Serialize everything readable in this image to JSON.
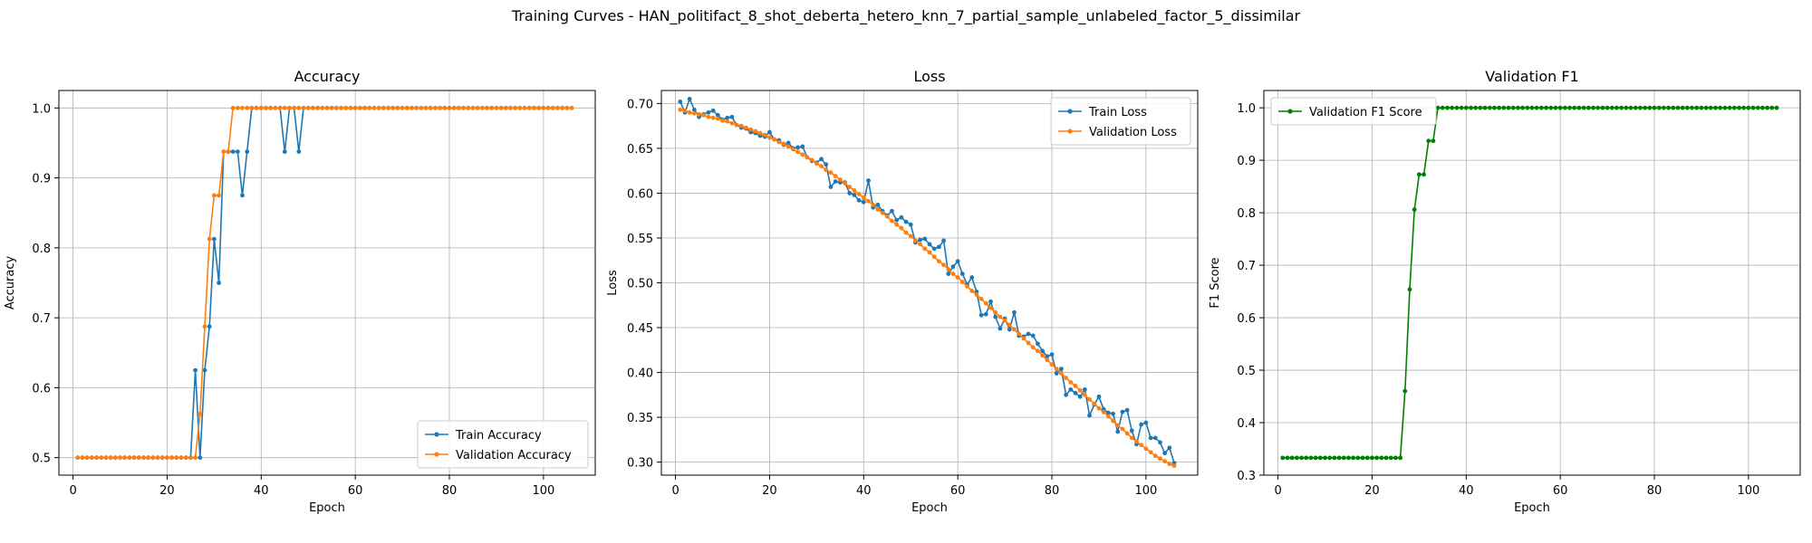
{
  "figure": {
    "suptitle": "Training Curves - HAN_politifact_8_shot_deberta_hetero_knn_7_partial_sample_unlabeled_factor_5_dissimilar"
  },
  "colors": {
    "train": "#1f77b4",
    "validation": "#ff7f0e",
    "f1": "#008000",
    "grid": "#b0b0b0"
  },
  "chart_data": [
    {
      "type": "line",
      "title": "Accuracy",
      "xlabel": "Epoch",
      "ylabel": "Accuracy",
      "xlim": [
        -3,
        111
      ],
      "ylim": [
        0.475,
        1.025
      ],
      "xticks": [
        0,
        20,
        40,
        60,
        80,
        100
      ],
      "yticks": [
        0.5,
        0.6,
        0.7,
        0.8,
        0.9,
        1.0
      ],
      "ytick_labels": [
        "0.5",
        "0.6",
        "0.7",
        "0.8",
        "0.9",
        "1.0"
      ],
      "grid": true,
      "legend": "lower-right",
      "x": [
        1,
        2,
        3,
        4,
        5,
        6,
        7,
        8,
        9,
        10,
        11,
        12,
        13,
        14,
        15,
        16,
        17,
        18,
        19,
        20,
        21,
        22,
        23,
        24,
        25,
        26,
        27,
        28,
        29,
        30,
        31,
        32,
        33,
        34,
        35,
        36,
        37,
        38,
        39,
        40,
        41,
        42,
        43,
        44,
        45,
        46,
        47,
        48,
        49,
        50,
        51,
        52,
        53,
        54,
        55,
        56,
        57,
        58,
        59,
        60,
        61,
        62,
        63,
        64,
        65,
        66,
        67,
        68,
        69,
        70,
        71,
        72,
        73,
        74,
        75,
        76,
        77,
        78,
        79,
        80,
        81,
        82,
        83,
        84,
        85,
        86,
        87,
        88,
        89,
        90,
        91,
        92,
        93,
        94,
        95,
        96,
        97,
        98,
        99,
        100,
        101,
        102,
        103,
        104,
        105,
        106
      ],
      "series": [
        {
          "name": "Train Accuracy",
          "color_key": "train",
          "values": [
            0.5,
            0.5,
            0.5,
            0.5,
            0.5,
            0.5,
            0.5,
            0.5,
            0.5,
            0.5,
            0.5,
            0.5,
            0.5,
            0.5,
            0.5,
            0.5,
            0.5,
            0.5,
            0.5,
            0.5,
            0.5,
            0.5,
            0.5,
            0.5,
            0.5,
            0.625,
            0.5,
            0.625,
            0.6875,
            0.8125,
            0.75,
            0.9375,
            0.9375,
            0.9375,
            0.9375,
            0.875,
            0.9375,
            1.0,
            1.0,
            1.0,
            1.0,
            1.0,
            1.0,
            1.0,
            0.9375,
            1.0,
            1.0,
            0.9375,
            1.0,
            1.0,
            1.0,
            1.0,
            1.0,
            1.0,
            1.0,
            1.0,
            1.0,
            1.0,
            1.0,
            1.0,
            1.0,
            1.0,
            1.0,
            1.0,
            1.0,
            1.0,
            1.0,
            1.0,
            1.0,
            1.0,
            1.0,
            1.0,
            1.0,
            1.0,
            1.0,
            1.0,
            1.0,
            1.0,
            1.0,
            1.0,
            1.0,
            1.0,
            1.0,
            1.0,
            1.0,
            1.0,
            1.0,
            1.0,
            1.0,
            1.0,
            1.0,
            1.0,
            1.0,
            1.0,
            1.0,
            1.0,
            1.0,
            1.0,
            1.0,
            1.0,
            1.0,
            1.0,
            1.0,
            1.0,
            1.0,
            1.0
          ]
        },
        {
          "name": "Validation Accuracy",
          "color_key": "validation",
          "values": [
            0.5,
            0.5,
            0.5,
            0.5,
            0.5,
            0.5,
            0.5,
            0.5,
            0.5,
            0.5,
            0.5,
            0.5,
            0.5,
            0.5,
            0.5,
            0.5,
            0.5,
            0.5,
            0.5,
            0.5,
            0.5,
            0.5,
            0.5,
            0.5,
            0.5,
            0.5,
            0.5625,
            0.6875,
            0.8125,
            0.875,
            0.875,
            0.9375,
            0.9375,
            1.0,
            1.0,
            1.0,
            1.0,
            1.0,
            1.0,
            1.0,
            1.0,
            1.0,
            1.0,
            1.0,
            1.0,
            1.0,
            1.0,
            1.0,
            1.0,
            1.0,
            1.0,
            1.0,
            1.0,
            1.0,
            1.0,
            1.0,
            1.0,
            1.0,
            1.0,
            1.0,
            1.0,
            1.0,
            1.0,
            1.0,
            1.0,
            1.0,
            1.0,
            1.0,
            1.0,
            1.0,
            1.0,
            1.0,
            1.0,
            1.0,
            1.0,
            1.0,
            1.0,
            1.0,
            1.0,
            1.0,
            1.0,
            1.0,
            1.0,
            1.0,
            1.0,
            1.0,
            1.0,
            1.0,
            1.0,
            1.0,
            1.0,
            1.0,
            1.0,
            1.0,
            1.0,
            1.0,
            1.0,
            1.0,
            1.0,
            1.0,
            1.0,
            1.0,
            1.0,
            1.0,
            1.0,
            1.0
          ]
        }
      ]
    },
    {
      "type": "line",
      "title": "Loss",
      "xlabel": "Epoch",
      "ylabel": "Loss",
      "xlim": [
        -3,
        111
      ],
      "ylim": [
        0.2855,
        0.7145
      ],
      "xticks": [
        0,
        20,
        40,
        60,
        80,
        100
      ],
      "yticks": [
        0.3,
        0.35,
        0.4,
        0.45,
        0.5,
        0.55,
        0.6,
        0.65,
        0.7
      ],
      "ytick_labels": [
        "0.30",
        "0.35",
        "0.40",
        "0.45",
        "0.50",
        "0.55",
        "0.60",
        "0.65",
        "0.70"
      ],
      "grid": true,
      "legend": "top-right",
      "x": [
        1,
        2,
        3,
        4,
        5,
        6,
        7,
        8,
        9,
        10,
        11,
        12,
        13,
        14,
        15,
        16,
        17,
        18,
        19,
        20,
        21,
        22,
        23,
        24,
        25,
        26,
        27,
        28,
        29,
        30,
        31,
        32,
        33,
        34,
        35,
        36,
        37,
        38,
        39,
        40,
        41,
        42,
        43,
        44,
        45,
        46,
        47,
        48,
        49,
        50,
        51,
        52,
        53,
        54,
        55,
        56,
        57,
        58,
        59,
        60,
        61,
        62,
        63,
        64,
        65,
        66,
        67,
        68,
        69,
        70,
        71,
        72,
        73,
        74,
        75,
        76,
        77,
        78,
        79,
        80,
        81,
        82,
        83,
        84,
        85,
        86,
        87,
        88,
        89,
        90,
        91,
        92,
        93,
        94,
        95,
        96,
        97,
        98,
        99,
        100,
        101,
        102,
        103,
        104,
        105,
        106
      ],
      "series": [
        {
          "name": "Train Loss",
          "color_key": "train",
          "values": [
            0.702,
            0.69,
            0.705,
            0.693,
            0.685,
            0.688,
            0.69,
            0.692,
            0.687,
            0.682,
            0.684,
            0.685,
            0.676,
            0.673,
            0.672,
            0.668,
            0.667,
            0.664,
            0.663,
            0.668,
            0.66,
            0.659,
            0.654,
            0.656,
            0.65,
            0.651,
            0.652,
            0.64,
            0.636,
            0.634,
            0.638,
            0.632,
            0.607,
            0.613,
            0.612,
            0.612,
            0.6,
            0.598,
            0.592,
            0.59,
            0.614,
            0.584,
            0.587,
            0.58,
            0.575,
            0.58,
            0.57,
            0.573,
            0.568,
            0.565,
            0.545,
            0.548,
            0.549,
            0.543,
            0.538,
            0.54,
            0.547,
            0.51,
            0.518,
            0.524,
            0.51,
            0.498,
            0.506,
            0.49,
            0.464,
            0.465,
            0.479,
            0.462,
            0.449,
            0.46,
            0.448,
            0.467,
            0.441,
            0.44,
            0.443,
            0.441,
            0.432,
            0.424,
            0.418,
            0.42,
            0.399,
            0.404,
            0.375,
            0.381,
            0.377,
            0.373,
            0.381,
            0.352,
            0.364,
            0.373,
            0.359,
            0.355,
            0.354,
            0.334,
            0.356,
            0.358,
            0.335,
            0.32,
            0.342,
            0.344,
            0.327,
            0.327,
            0.322,
            0.31,
            0.316,
            0.299
          ]
        },
        {
          "name": "Validation Loss",
          "color_key": "validation",
          "values": [
            0.693,
            0.692,
            0.69,
            0.689,
            0.688,
            0.687,
            0.685,
            0.684,
            0.683,
            0.681,
            0.68,
            0.678,
            0.676,
            0.675,
            0.673,
            0.671,
            0.669,
            0.667,
            0.665,
            0.662,
            0.66,
            0.657,
            0.655,
            0.652,
            0.649,
            0.646,
            0.643,
            0.64,
            0.637,
            0.633,
            0.63,
            0.626,
            0.623,
            0.619,
            0.615,
            0.611,
            0.607,
            0.603,
            0.599,
            0.595,
            0.591,
            0.587,
            0.582,
            0.578,
            0.574,
            0.569,
            0.565,
            0.561,
            0.556,
            0.552,
            0.547,
            0.543,
            0.538,
            0.534,
            0.529,
            0.524,
            0.52,
            0.515,
            0.51,
            0.506,
            0.501,
            0.496,
            0.491,
            0.487,
            0.482,
            0.477,
            0.472,
            0.467,
            0.462,
            0.458,
            0.453,
            0.448,
            0.443,
            0.438,
            0.433,
            0.428,
            0.424,
            0.419,
            0.414,
            0.409,
            0.404,
            0.399,
            0.394,
            0.389,
            0.385,
            0.38,
            0.375,
            0.37,
            0.365,
            0.36,
            0.356,
            0.351,
            0.346,
            0.341,
            0.337,
            0.332,
            0.327,
            0.323,
            0.319,
            0.315,
            0.311,
            0.307,
            0.304,
            0.301,
            0.298,
            0.296
          ]
        }
      ]
    },
    {
      "type": "line",
      "title": "Validation F1",
      "xlabel": "Epoch",
      "ylabel": "F1 Score",
      "xlim": [
        -3,
        111
      ],
      "ylim": [
        0.3,
        1.033
      ],
      "xticks": [
        0,
        20,
        40,
        60,
        80,
        100
      ],
      "yticks": [
        0.3,
        0.4,
        0.5,
        0.6,
        0.7,
        0.8,
        0.9,
        1.0
      ],
      "ytick_labels": [
        "0.3",
        "0.4",
        "0.5",
        "0.6",
        "0.7",
        "0.8",
        "0.9",
        "1.0"
      ],
      "grid": true,
      "legend": "top-left",
      "x": [
        1,
        2,
        3,
        4,
        5,
        6,
        7,
        8,
        9,
        10,
        11,
        12,
        13,
        14,
        15,
        16,
        17,
        18,
        19,
        20,
        21,
        22,
        23,
        24,
        25,
        26,
        27,
        28,
        29,
        30,
        31,
        32,
        33,
        34,
        35,
        36,
        37,
        38,
        39,
        40,
        41,
        42,
        43,
        44,
        45,
        46,
        47,
        48,
        49,
        50,
        51,
        52,
        53,
        54,
        55,
        56,
        57,
        58,
        59,
        60,
        61,
        62,
        63,
        64,
        65,
        66,
        67,
        68,
        69,
        70,
        71,
        72,
        73,
        74,
        75,
        76,
        77,
        78,
        79,
        80,
        81,
        82,
        83,
        84,
        85,
        86,
        87,
        88,
        89,
        90,
        91,
        92,
        93,
        94,
        95,
        96,
        97,
        98,
        99,
        100,
        101,
        102,
        103,
        104,
        105,
        106
      ],
      "series": [
        {
          "name": "Validation F1 Score",
          "color_key": "f1",
          "values": [
            0.333,
            0.333,
            0.333,
            0.333,
            0.333,
            0.333,
            0.333,
            0.333,
            0.333,
            0.333,
            0.333,
            0.333,
            0.333,
            0.333,
            0.333,
            0.333,
            0.333,
            0.333,
            0.333,
            0.333,
            0.333,
            0.333,
            0.333,
            0.333,
            0.333,
            0.333,
            0.46,
            0.654,
            0.806,
            0.873,
            0.873,
            0.937,
            0.937,
            1.0,
            1.0,
            1.0,
            1.0,
            1.0,
            1.0,
            1.0,
            1.0,
            1.0,
            1.0,
            1.0,
            1.0,
            1.0,
            1.0,
            1.0,
            1.0,
            1.0,
            1.0,
            1.0,
            1.0,
            1.0,
            1.0,
            1.0,
            1.0,
            1.0,
            1.0,
            1.0,
            1.0,
            1.0,
            1.0,
            1.0,
            1.0,
            1.0,
            1.0,
            1.0,
            1.0,
            1.0,
            1.0,
            1.0,
            1.0,
            1.0,
            1.0,
            1.0,
            1.0,
            1.0,
            1.0,
            1.0,
            1.0,
            1.0,
            1.0,
            1.0,
            1.0,
            1.0,
            1.0,
            1.0,
            1.0,
            1.0,
            1.0,
            1.0,
            1.0,
            1.0,
            1.0,
            1.0,
            1.0,
            1.0,
            1.0,
            1.0,
            1.0,
            1.0,
            1.0,
            1.0,
            1.0,
            1.0
          ]
        }
      ]
    }
  ]
}
